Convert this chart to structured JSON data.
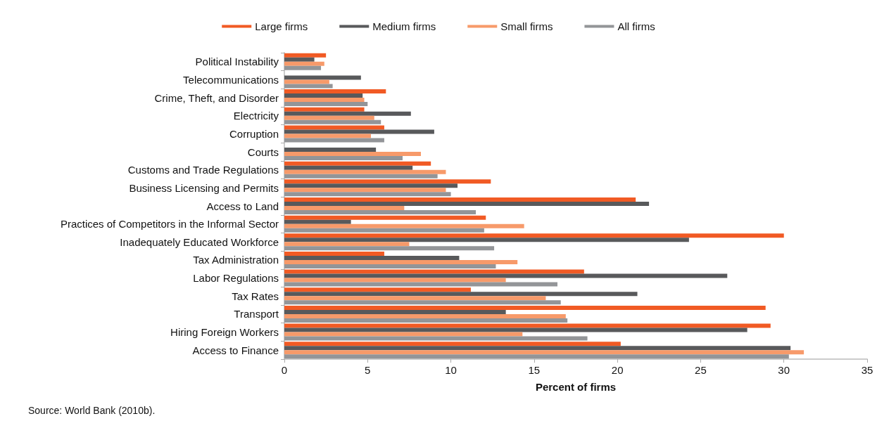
{
  "chart_data": {
    "type": "bar",
    "orientation": "horizontal",
    "xlabel": "Percent of firms",
    "categories": [
      "Political Instability",
      "Telecommunications",
      "Crime, Theft, and Disorder",
      "Electricity",
      "Corruption",
      "Courts",
      "Customs and Trade Regulations",
      "Business Licensing and Permits",
      "Access to Land",
      "Practices of Competitors in the Informal Sector",
      "Inadequately Educated Workforce",
      "Tax Administration",
      "Labor Regulations",
      "Tax Rates",
      "Transport",
      "Hiring Foreign Workers",
      "Access to Finance"
    ],
    "series": [
      {
        "name": "Large firms",
        "color": "#f15a24",
        "values": [
          2.5,
          null,
          6.1,
          4.8,
          6.0,
          null,
          8.8,
          12.4,
          21.1,
          12.1,
          30.0,
          6.0,
          18.0,
          11.2,
          28.9,
          29.2,
          20.2
        ]
      },
      {
        "name": "Medium firms",
        "color": "#58595b",
        "values": [
          1.8,
          4.6,
          4.7,
          7.6,
          9.0,
          5.5,
          7.7,
          10.4,
          21.9,
          4.0,
          24.3,
          10.5,
          26.6,
          21.2,
          13.3,
          27.8,
          30.4
        ]
      },
      {
        "name": "Small firms",
        "color": "#f79a6a",
        "values": [
          2.4,
          2.7,
          4.8,
          5.4,
          5.2,
          8.2,
          9.7,
          9.7,
          7.2,
          14.4,
          7.5,
          14.0,
          13.3,
          15.7,
          16.9,
          14.3,
          31.2
        ]
      },
      {
        "name": "All firms",
        "color": "#939598",
        "values": [
          2.2,
          2.9,
          5.0,
          5.8,
          6.0,
          7.1,
          9.2,
          10.0,
          11.5,
          12.0,
          12.6,
          12.7,
          16.4,
          16.6,
          17.0,
          18.2,
          30.3
        ]
      }
    ],
    "xlim": [
      0,
      35
    ],
    "xticks": [
      0,
      5,
      10,
      15,
      20,
      25,
      30,
      35
    ],
    "grid": false,
    "legend": "top",
    "annotations": [
      "Source: World Bank (2010b)."
    ]
  }
}
